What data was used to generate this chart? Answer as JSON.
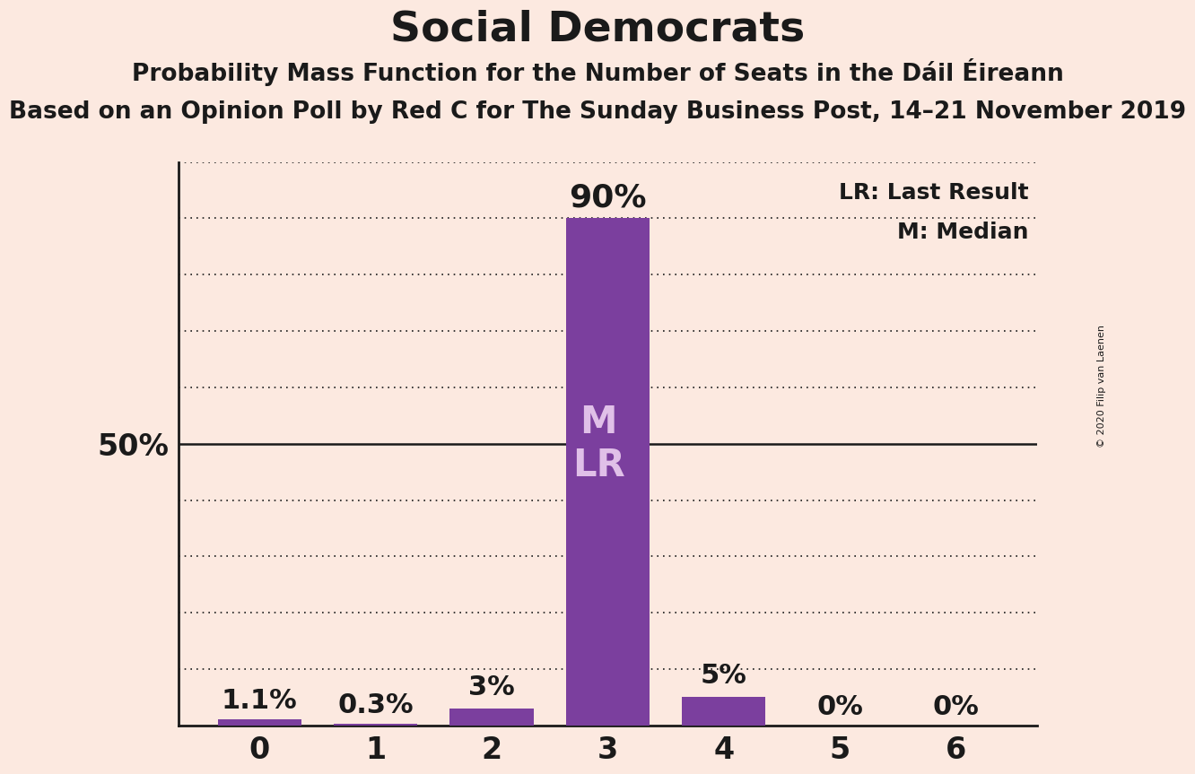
{
  "title": "Social Democrats",
  "subtitle1": "Probability Mass Function for the Number of Seats in the Dáil Éireann",
  "subtitle2": "Based on an Opinion Poll by Red C for The Sunday Business Post, 14–21 November 2019",
  "copyright": "© 2020 Filip van Laenen",
  "categories": [
    0,
    1,
    2,
    3,
    4,
    5,
    6
  ],
  "values": [
    1.1,
    0.3,
    3.0,
    90.0,
    5.0,
    0.0,
    0.0
  ],
  "bar_color": "#7b3f9e",
  "background_color": "#fce9e0",
  "bar_labels": [
    "1.1%",
    "0.3%",
    "3%",
    "90%",
    "5%",
    "0%",
    "0%"
  ],
  "median_seat": 3,
  "last_result_seat": 3,
  "legend_lr": "LR: Last Result",
  "legend_m": "M: Median",
  "ylim": [
    0,
    100
  ],
  "title_fontsize": 34,
  "subtitle1_fontsize": 19,
  "subtitle2_fontsize": 19,
  "bar_label_fontsize": 22,
  "tick_fontsize": 24,
  "dotted_line_color": "#1a1a1a",
  "solid_line_color": "#1a1a1a",
  "text_color": "#1a1a1a",
  "bar_text_color": "#e0c0e8",
  "bar_text_fontsize": 30,
  "legend_fontsize": 18,
  "copyright_fontsize": 8
}
